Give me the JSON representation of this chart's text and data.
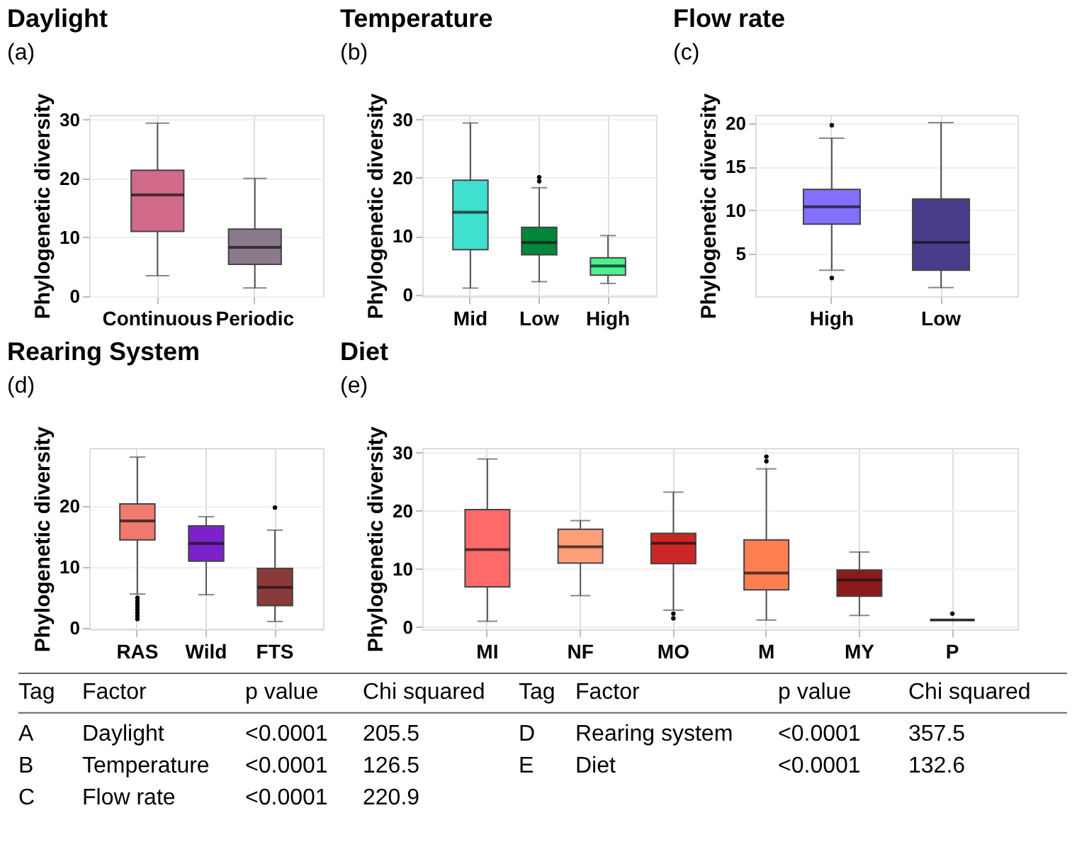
{
  "chart_data": [
    {
      "type": "box",
      "title": "Daylight",
      "ylabel": "Phylogenetic diversity",
      "annotations": [
        "(a)"
      ],
      "categories": [
        "Continuous",
        "Periodic"
      ],
      "colors": [
        "#d06a88",
        "#8a7a8c"
      ],
      "ylim": [
        0,
        30.8
      ],
      "yticks": [
        0,
        10,
        20,
        30
      ],
      "grid": true,
      "boxes": [
        {
          "low": 3.5,
          "q1": 11.0,
          "median": 17.2,
          "q3": 21.4,
          "high": 29.4
        },
        {
          "low": 1.4,
          "q1": 5.4,
          "median": 8.3,
          "q3": 11.4,
          "high": 20.0
        }
      ]
    },
    {
      "type": "box",
      "title": "Temperature",
      "ylabel": "Phylogenetic diversity",
      "annotations": [
        "(b)"
      ],
      "categories": [
        "Mid",
        "Low",
        "High"
      ],
      "colors": [
        "#40e0d0",
        "#00873c",
        "#4df08f"
      ],
      "ylim": [
        -0.3,
        30.8
      ],
      "yticks": [
        0,
        10,
        20,
        30
      ],
      "grid": true,
      "boxes": [
        {
          "low": 1.1,
          "q1": 7.7,
          "median": 14.1,
          "q3": 19.6,
          "high": 29.4
        },
        {
          "low": 2.2,
          "q1": 6.8,
          "median": 8.9,
          "q3": 11.5,
          "high": 18.3,
          "outliers": [
            19.4,
            20.1
          ]
        },
        {
          "low": 1.9,
          "q1": 3.3,
          "median": 4.9,
          "q3": 6.3,
          "high": 10.1
        }
      ]
    },
    {
      "type": "box",
      "title": "Flow rate",
      "ylabel": "Phylogenetic diversity",
      "annotations": [
        "(c)"
      ],
      "categories": [
        "High",
        "Low"
      ],
      "colors": [
        "#8470ff",
        "#483d8b"
      ],
      "ylim": [
        0.1,
        21.0
      ],
      "yticks": [
        5,
        10,
        15,
        20
      ],
      "grid": true,
      "boxes": [
        {
          "low": 3.1,
          "q1": 8.4,
          "median": 10.4,
          "q3": 12.4,
          "high": 18.3,
          "outliers": [
            2.2,
            19.8
          ]
        },
        {
          "low": 1.1,
          "q1": 3.1,
          "median": 6.3,
          "q3": 11.3,
          "high": 20.1
        }
      ]
    },
    {
      "type": "box",
      "title": "Rearing System",
      "ylabel": "Phylogenetic diversity",
      "annotations": [
        "(d)"
      ],
      "categories": [
        "RAS",
        "Wild",
        "FTS"
      ],
      "colors": [
        "#f07a6e",
        "#7b22cc",
        "#8b3a3a"
      ],
      "ylim": [
        -0.2,
        29.6
      ],
      "yticks": [
        0,
        10,
        20
      ],
      "grid": true,
      "boxes": [
        {
          "low": 5.6,
          "q1": 14.5,
          "median": 17.6,
          "q3": 20.4,
          "high": 28.1,
          "outliers": [
            1.5,
            2.0,
            2.5,
            3.0,
            3.5,
            4.0,
            4.5,
            5.0
          ]
        },
        {
          "low": 5.5,
          "q1": 11.0,
          "median": 13.9,
          "q3": 16.8,
          "high": 18.3
        },
        {
          "low": 1.1,
          "q1": 3.7,
          "median": 6.7,
          "q3": 9.8,
          "high": 16.1,
          "outliers": [
            19.8
          ]
        }
      ]
    },
    {
      "type": "box",
      "title": "Diet",
      "ylabel": "Phylogenetic diversity",
      "annotations": [
        "(e)"
      ],
      "categories": [
        "MI",
        "NF",
        "MO",
        "M",
        "MY",
        "P"
      ],
      "colors": [
        "#ff6a6a",
        "#ffa07a",
        "#cd2626",
        "#ff7f50",
        "#8b1a1a",
        "#111111"
      ],
      "ylim": [
        -0.4,
        30.8
      ],
      "yticks": [
        0,
        10,
        20,
        30
      ],
      "grid": true,
      "boxes": [
        {
          "low": 1.0,
          "q1": 6.9,
          "median": 13.3,
          "q3": 20.2,
          "high": 28.9
        },
        {
          "low": 5.4,
          "q1": 11.0,
          "median": 13.8,
          "q3": 16.8,
          "high": 18.3
        },
        {
          "low": 2.9,
          "q1": 10.9,
          "median": 14.4,
          "q3": 16.1,
          "high": 23.2,
          "outliers": [
            1.5,
            2.3
          ]
        },
        {
          "low": 1.2,
          "q1": 6.4,
          "median": 9.3,
          "q3": 15.0,
          "high": 27.2,
          "outliers": [
            28.5,
            29.3
          ]
        },
        {
          "low": 2.0,
          "q1": 5.3,
          "median": 8.1,
          "q3": 9.8,
          "high": 12.9
        },
        {
          "low": 1.2,
          "q1": 1.2,
          "median": 1.2,
          "q3": 1.2,
          "high": 1.2,
          "outliers": [
            2.3
          ]
        }
      ]
    },
    {
      "type": "other",
      "annotations": [
        "Tag",
        "Factor",
        "p value",
        "Chi squared",
        "Tag",
        "Factor",
        "p value",
        "Chi squared",
        "A",
        "Daylight",
        "<0.0001",
        "205.5",
        "D",
        "Rearing system",
        "<0.0001",
        "357.5",
        "B",
        "Temperature",
        "<0.0001",
        "126.5",
        "E",
        "Diet",
        "<0.0001",
        "132.6",
        "C",
        "Flow rate",
        "<0.0001",
        "220.9"
      ]
    }
  ]
}
